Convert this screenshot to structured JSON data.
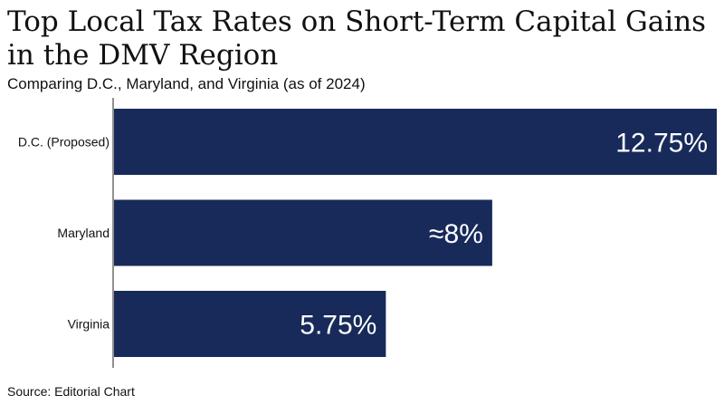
{
  "title": "Top Local Tax Rates on Short-Term Capital Gains in the DMV Region",
  "subtitle": "Comparing D.C., Maryland, and Virginia (as of 2024)",
  "source": "Source: Editorial Chart",
  "chart_data": {
    "type": "bar",
    "orientation": "horizontal",
    "title": "Top Local Tax Rates on Short-Term Capital Gains in the DMV Region",
    "subtitle": "Comparing D.C., Maryland, and Virginia (as of 2024)",
    "categories": [
      "D.C. (Proposed)",
      "Maryland",
      "Virginia"
    ],
    "values": [
      12.75,
      8,
      5.75
    ],
    "data_labels": [
      "12.75%",
      "≈8%",
      "5.75%"
    ],
    "xlabel": "",
    "ylabel": "",
    "xlim": [
      0,
      12.75
    ],
    "grid": false,
    "bar_color": "#172A5A",
    "label_color": "#FFFFFF"
  }
}
